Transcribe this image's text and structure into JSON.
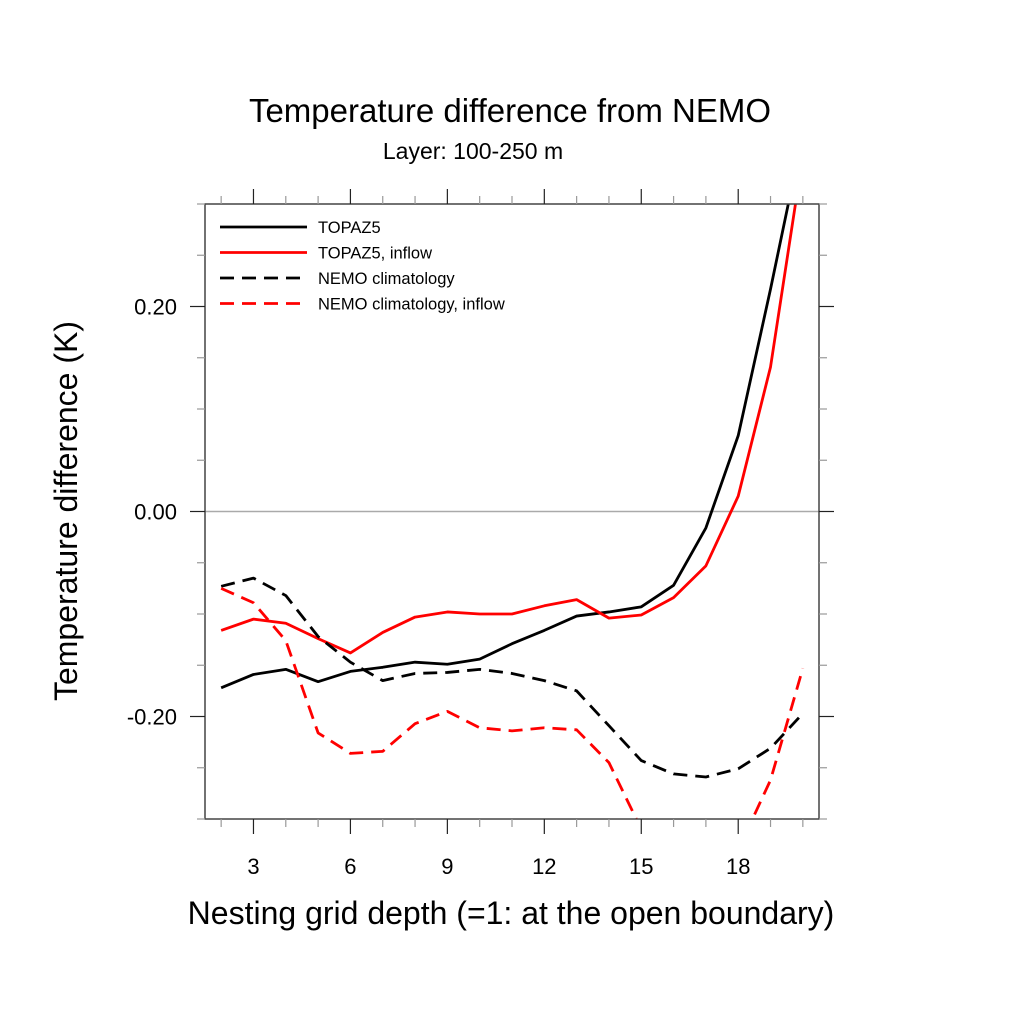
{
  "chart_data": {
    "type": "line",
    "title": "Temperature difference from NEMO",
    "subtitle": "Layer: 100-250 m",
    "xlabel": "Nesting grid depth (=1: at the open boundary)",
    "ylabel": "Temperature difference (K)",
    "xlim": [
      1.5,
      20.5
    ],
    "ylim": [
      -0.3,
      0.3
    ],
    "x_major_ticks": [
      3,
      6,
      9,
      12,
      15,
      18
    ],
    "x_tick_labels": [
      "3",
      "6",
      "9",
      "12",
      "15",
      "18"
    ],
    "x_minor_step": 1,
    "y_major_ticks": [
      -0.2,
      0.0,
      0.2
    ],
    "y_tick_labels": [
      "-0.20",
      "0.00",
      "0.20"
    ],
    "y_minor_step": 0.05,
    "reference_line": 0.0,
    "grid": false,
    "legend_position": "top-left",
    "x": [
      2,
      3,
      4,
      5,
      6,
      7,
      8,
      9,
      10,
      11,
      12,
      13,
      14,
      15,
      16,
      17,
      18,
      19,
      20
    ],
    "series": [
      {
        "name": "TOPAZ5",
        "color": "#000000",
        "dash": "solid",
        "values": [
          -0.172,
          -0.159,
          -0.154,
          -0.166,
          -0.156,
          -0.152,
          -0.147,
          -0.149,
          -0.144,
          -0.129,
          -0.116,
          -0.102,
          -0.098,
          -0.093,
          -0.072,
          -0.016,
          0.074,
          0.217,
          0.368
        ]
      },
      {
        "name": "TOPAZ5, inflow",
        "color": "#ff0000",
        "dash": "solid",
        "values": [
          -0.116,
          -0.105,
          -0.109,
          -0.124,
          -0.138,
          -0.118,
          -0.103,
          -0.098,
          -0.1,
          -0.1,
          -0.092,
          -0.086,
          -0.104,
          -0.101,
          -0.084,
          -0.053,
          0.015,
          0.141,
          0.347
        ]
      },
      {
        "name": "NEMO climatology",
        "color": "#000000",
        "dash": "dashed",
        "values": [
          -0.073,
          -0.065,
          -0.082,
          -0.122,
          -0.147,
          -0.165,
          -0.158,
          -0.157,
          -0.154,
          -0.158,
          -0.165,
          -0.175,
          -0.209,
          -0.243,
          -0.256,
          -0.259,
          -0.251,
          -0.231,
          -0.197
        ]
      },
      {
        "name": "NEMO climatology, inflow",
        "color": "#ff0000",
        "dash": "dashed",
        "values": [
          -0.075,
          -0.089,
          -0.126,
          -0.216,
          -0.236,
          -0.234,
          -0.207,
          -0.195,
          -0.211,
          -0.214,
          -0.211,
          -0.213,
          -0.245,
          -0.31,
          -0.36,
          -0.37,
          -0.33,
          -0.262,
          -0.153
        ]
      }
    ]
  }
}
